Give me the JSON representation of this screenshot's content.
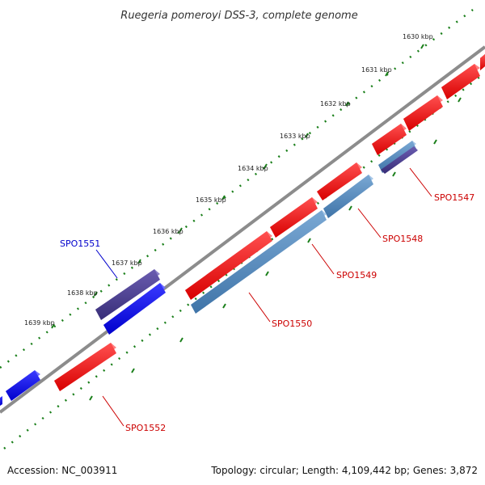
{
  "title": "Ruegeria pomeroyi DSS-3, complete genome",
  "footer": {
    "accession": "Accession: NC_003911",
    "summary": "Topology: circular; Length: 4,109,442 bp; Genes: 3,872"
  },
  "colors": {
    "backbone": "#8c8c8c",
    "tick_marks": "#1a7f1a",
    "forward_gene": "#ee0000",
    "reverse_gene_blue": "#0000ee",
    "reverse_gene_steel": "#4f86b8",
    "reverse_gene_purple": "#4a3f8c",
    "label_red": "#cc0000",
    "label_blue": "#0000cc"
  },
  "ticks": [
    {
      "label": "1630 kbp"
    },
    {
      "label": "1631 kbp"
    },
    {
      "label": "1632 kbp"
    },
    {
      "label": "1633 kbp"
    },
    {
      "label": "1634 kbp"
    },
    {
      "label": "1635 kbp"
    },
    {
      "label": "1636 kbp"
    },
    {
      "label": "1637 kbp"
    },
    {
      "label": "1638 kbp"
    },
    {
      "label": "1639 kbp"
    }
  ],
  "gene_labels": [
    {
      "name": "SPO1547",
      "color": "red"
    },
    {
      "name": "SPO1548",
      "color": "red"
    },
    {
      "name": "SPO1549",
      "color": "red"
    },
    {
      "name": "SPO1550",
      "color": "red"
    },
    {
      "name": "SPO1551",
      "color": "blue"
    },
    {
      "name": "SPO1552",
      "color": "red"
    }
  ]
}
